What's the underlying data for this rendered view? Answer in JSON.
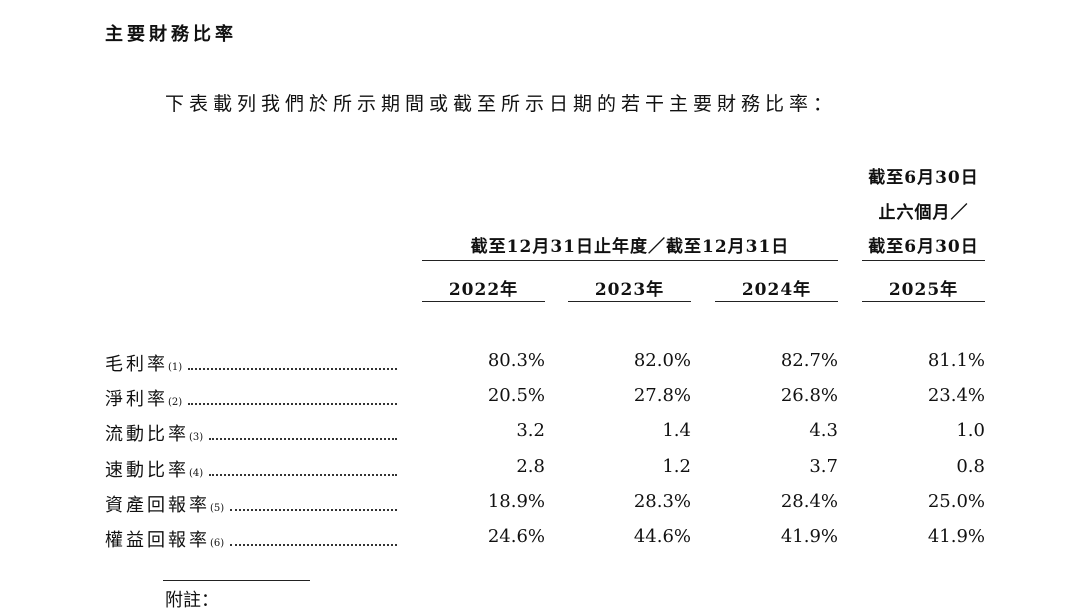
{
  "heading": "主要財務比率",
  "intro": "下表載列我們於所示期間或截至所示日期的若干主要財務比率：",
  "table": {
    "group_header": "截至12月31日止年度／截至12月31日",
    "last_header": [
      "截至6月30日",
      "止六個月／",
      "截至6月30日"
    ],
    "years": [
      "2022年",
      "2023年",
      "2024年",
      "2025年"
    ],
    "rows": [
      {
        "label": "毛利率",
        "note": "(1)",
        "values": [
          "80.3%",
          "82.0%",
          "82.7%",
          "81.1%"
        ]
      },
      {
        "label": "淨利率",
        "note": "(2)",
        "values": [
          "20.5%",
          "27.8%",
          "26.8%",
          "23.4%"
        ]
      },
      {
        "label": "流動比率",
        "note": "(3)",
        "values": [
          "3.2",
          "1.4",
          "4.3",
          "1.0"
        ]
      },
      {
        "label": "速動比率",
        "note": "(4)",
        "values": [
          "2.8",
          "1.2",
          "3.7",
          "0.8"
        ]
      },
      {
        "label": "資產回報率",
        "note": "(5)",
        "values": [
          "18.9%",
          "28.3%",
          "28.4%",
          "25.0%"
        ]
      },
      {
        "label": "權益回報率",
        "note": "(6)",
        "values": [
          "24.6%",
          "44.6%",
          "41.9%",
          "41.9%"
        ]
      }
    ]
  },
  "footnote_heading": "附註："
}
